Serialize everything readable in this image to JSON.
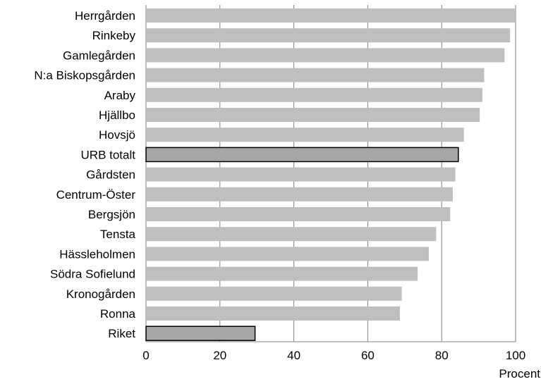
{
  "chart_data": {
    "type": "bar",
    "orientation": "horizontal",
    "categories": [
      "Herrgården",
      "Rinkeby",
      "Gamlegården",
      "N:a Biskopsgården",
      "Araby",
      "Hjällbo",
      "Hovsjö",
      "URB totalt",
      "Gårdsten",
      "Centrum-Öster",
      "Bergsjön",
      "Tensta",
      "Hässleholmen",
      "Södra Sofielund",
      "Kronogården",
      "Ronna",
      "Riket"
    ],
    "values": [
      100,
      98.5,
      97,
      91.5,
      91,
      90.3,
      86,
      84.5,
      83.7,
      83,
      82.3,
      78.5,
      76.5,
      73.5,
      69.2,
      68.7,
      29.5
    ],
    "highlighted": [
      "URB totalt",
      "Riket"
    ],
    "colors": {
      "default": "#bfbfbf",
      "highlight": "#a6a6a6",
      "highlight_border": "#000000",
      "grid": "#808080"
    },
    "xlabel": "Procent",
    "ylabel": "",
    "xlim": [
      0,
      100
    ],
    "xticks": [
      0,
      20,
      40,
      60,
      80,
      100
    ],
    "grid": true,
    "legend": "none"
  }
}
